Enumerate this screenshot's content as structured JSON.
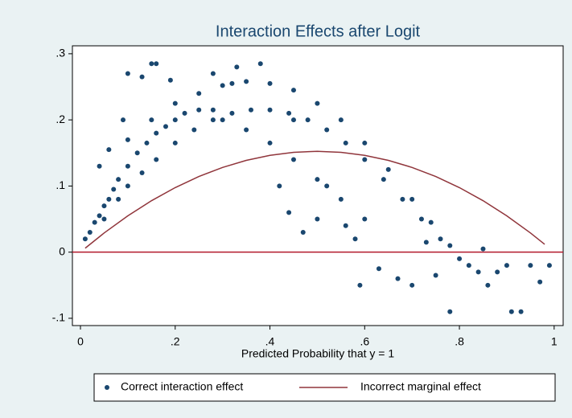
{
  "chart_data": {
    "type": "scatter",
    "title": "Interaction Effects after Logit",
    "x_label": "Predicted Probability that y = 1",
    "xlim": [
      -0.017,
      1.019
    ],
    "ylim": [
      -0.111,
      0.312
    ],
    "xticks": [
      0,
      {
        "value": 0.2,
        "label": ".2"
      },
      {
        "value": 0.4,
        "label": ".4"
      },
      {
        "value": 0.6,
        "label": ".6"
      },
      {
        "value": 0.8,
        "label": ".8"
      },
      1
    ],
    "yticks": [
      {
        "value": -0.1,
        "label": "-.1"
      },
      0,
      {
        "value": 0.1,
        "label": ".1"
      },
      {
        "value": 0.2,
        "label": ".2"
      },
      {
        "value": 0.3,
        "label": ".3"
      }
    ],
    "reference_line": {
      "value": 0,
      "color": "#b2182b"
    },
    "legend": "bottom",
    "series": [
      {
        "name": "Correct interaction effect",
        "type": "scatter",
        "color": "#1a476f",
        "x": [
          0.01,
          0.02,
          0.03,
          0.04,
          0.05,
          0.06,
          0.07,
          0.08,
          0.1,
          0.12,
          0.14,
          0.16,
          0.18,
          0.2,
          0.22,
          0.25,
          0.28,
          0.05,
          0.08,
          0.1,
          0.13,
          0.16,
          0.2,
          0.24,
          0.28,
          0.32,
          0.36,
          0.4,
          0.44,
          0.48,
          0.52,
          0.56,
          0.6,
          0.64,
          0.68,
          0.72,
          0.76,
          0.8,
          0.84,
          0.86,
          0.1,
          0.15,
          0.2,
          0.25,
          0.3,
          0.35,
          0.4,
          0.45,
          0.5,
          0.55,
          0.6,
          0.65,
          0.7,
          0.74,
          0.78,
          0.82,
          0.3,
          0.35,
          0.4,
          0.45,
          0.5,
          0.55,
          0.6,
          0.04,
          0.06,
          0.09,
          0.1,
          0.13,
          0.15,
          0.16,
          0.19,
          0.33,
          0.38,
          0.45,
          0.42,
          0.44,
          0.47,
          0.5,
          0.52,
          0.56,
          0.58,
          0.59,
          0.63,
          0.67,
          0.7,
          0.73,
          0.75,
          0.78,
          0.85,
          0.88,
          0.9,
          0.91,
          0.93,
          0.95,
          0.97,
          0.99,
          0.32,
          0.28
        ],
        "y": [
          0.02,
          0.03,
          0.045,
          0.055,
          0.07,
          0.08,
          0.095,
          0.11,
          0.13,
          0.15,
          0.165,
          0.18,
          0.19,
          0.2,
          0.21,
          0.215,
          0.215,
          0.05,
          0.08,
          0.1,
          0.12,
          0.14,
          0.165,
          0.185,
          0.2,
          0.21,
          0.215,
          0.215,
          0.21,
          0.2,
          0.185,
          0.165,
          0.14,
          0.11,
          0.08,
          0.05,
          0.02,
          -0.01,
          -0.03,
          -0.05,
          0.17,
          0.2,
          0.225,
          0.24,
          0.252,
          0.258,
          0.255,
          0.245,
          0.225,
          0.2,
          0.165,
          0.125,
          0.08,
          0.045,
          0.01,
          -0.02,
          0.2,
          0.185,
          0.165,
          0.14,
          0.11,
          0.08,
          0.05,
          0.13,
          0.155,
          0.2,
          0.27,
          0.265,
          0.285,
          0.285,
          0.26,
          0.28,
          0.285,
          0.2,
          0.1,
          0.06,
          0.03,
          0.05,
          0.1,
          0.04,
          0.02,
          -0.05,
          -0.025,
          -0.04,
          -0.05,
          0.015,
          -0.035,
          -0.09,
          0.005,
          -0.03,
          -0.02,
          -0.09,
          -0.09,
          -0.02,
          -0.045,
          -0.02,
          0.255,
          0.27
        ]
      },
      {
        "name": "Incorrect marginal effect",
        "type": "line",
        "color": "#90353b",
        "x": [
          0.01,
          0.05,
          0.1,
          0.15,
          0.2,
          0.25,
          0.3,
          0.35,
          0.4,
          0.45,
          0.5,
          0.55,
          0.6,
          0.65,
          0.7,
          0.75,
          0.8,
          0.85,
          0.9,
          0.95,
          0.98
        ],
        "y": [
          0.006,
          0.029,
          0.0549,
          0.0778,
          0.0976,
          0.1144,
          0.1281,
          0.1388,
          0.1464,
          0.151,
          0.1525,
          0.151,
          0.1464,
          0.1388,
          0.1281,
          0.1144,
          0.0976,
          0.0778,
          0.0549,
          0.029,
          0.0118
        ]
      }
    ]
  }
}
